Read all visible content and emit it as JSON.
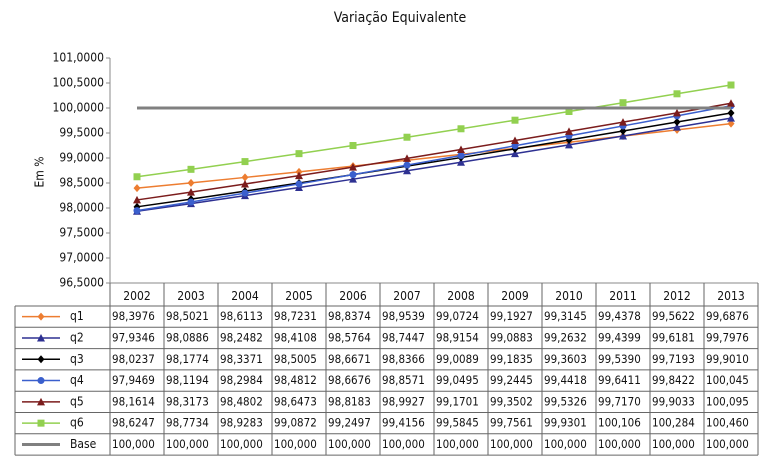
{
  "chart_data": {
    "type": "line",
    "title": "Variação Equivalente",
    "y_label": "Em %",
    "categories": [
      "2002",
      "2003",
      "2004",
      "2005",
      "2006",
      "2007",
      "2008",
      "2009",
      "2010",
      "2011",
      "2012",
      "2013"
    ],
    "ylim": [
      96.5,
      101
    ],
    "yticks": [
      {
        "value": 96.5,
        "label": "96,5000"
      },
      {
        "value": 97,
        "label": "97,0000"
      },
      {
        "value": 97.5,
        "label": "97,5000"
      },
      {
        "value": 98,
        "label": "98,0000"
      },
      {
        "value": 98.5,
        "label": "98,5000"
      },
      {
        "value": 99,
        "label": "99,0000"
      },
      {
        "value": 99.5,
        "label": "99,5000"
      },
      {
        "value": 100,
        "label": "100,0000"
      },
      {
        "value": 100.5,
        "label": "100,5000"
      },
      {
        "value": 101,
        "label": "101,0000"
      }
    ],
    "grid": false,
    "series": [
      {
        "name": "q1",
        "color": "#ed7d31",
        "marker": "diamond",
        "values": [
          98.3976,
          98.5021,
          98.6113,
          98.7231,
          98.8374,
          98.9539,
          99.0724,
          99.1927,
          99.3145,
          99.4378,
          99.5622,
          99.6876
        ],
        "value_labels": [
          "98,3976",
          "98,5021",
          "98,6113",
          "98,7231",
          "98,8374",
          "98,9539",
          "99,0724",
          "99,1927",
          "99,3145",
          "99,4378",
          "99,5622",
          "99,6876"
        ]
      },
      {
        "name": "q2",
        "color": "#2e3192",
        "marker": "triangle",
        "values": [
          97.9346,
          98.0886,
          98.2482,
          98.4108,
          98.5764,
          98.7447,
          98.9154,
          99.0883,
          99.2632,
          99.4399,
          99.6181,
          99.7976
        ],
        "value_labels": [
          "97,9346",
          "98,0886",
          "98,2482",
          "98,4108",
          "98,5764",
          "98,7447",
          "98,9154",
          "99,0883",
          "99,2632",
          "99,4399",
          "99,6181",
          "99,7976"
        ]
      },
      {
        "name": "q3",
        "color": "#000000",
        "marker": "diamond",
        "values": [
          98.0237,
          98.1774,
          98.3371,
          98.5005,
          98.6671,
          98.8366,
          99.0089,
          99.1835,
          99.3603,
          99.539,
          99.7193,
          99.901
        ],
        "value_labels": [
          "98,0237",
          "98,1774",
          "98,3371",
          "98,5005",
          "98,6671",
          "98,8366",
          "99,0089",
          "99,1835",
          "99,3603",
          "99,5390",
          "99,7193",
          "99,9010"
        ]
      },
      {
        "name": "q4",
        "color": "#3a5fcd",
        "marker": "circle",
        "values": [
          97.9469,
          98.1194,
          98.2984,
          98.4812,
          98.6676,
          98.8571,
          99.0495,
          99.2445,
          99.4418,
          99.6411,
          99.8422,
          100.045
        ],
        "value_labels": [
          "97,9469",
          "98,1194",
          "98,2984",
          "98,4812",
          "98,6676",
          "98,8571",
          "99,0495",
          "99,2445",
          "99,4418",
          "99,6411",
          "99,8422",
          "100,045"
        ]
      },
      {
        "name": "q5",
        "color": "#7b1c1c",
        "marker": "triangle",
        "values": [
          98.1614,
          98.3173,
          98.4802,
          98.6473,
          98.8183,
          98.9927,
          99.1701,
          99.3502,
          99.5326,
          99.717,
          99.9033,
          100.095
        ],
        "value_labels": [
          "98,1614",
          "98,3173",
          "98,4802",
          "98,6473",
          "98,8183",
          "98,9927",
          "99,1701",
          "99,3502",
          "99,5326",
          "99,7170",
          "99,9033",
          "100,095"
        ]
      },
      {
        "name": "q6",
        "color": "#92d050",
        "marker": "square",
        "values": [
          98.6247,
          98.7734,
          98.9283,
          99.0872,
          99.2497,
          99.4156,
          99.5845,
          99.7561,
          99.9301,
          100.106,
          100.284,
          100.46
        ],
        "value_labels": [
          "98,6247",
          "98,7734",
          "98,9283",
          "99,0872",
          "99,2497",
          "99,4156",
          "99,5845",
          "99,7561",
          "99,9301",
          "100,106",
          "100,284",
          "100,460"
        ]
      },
      {
        "name": "Base",
        "color": "#808080",
        "marker": "none",
        "values": [
          100,
          100,
          100,
          100,
          100,
          100,
          100,
          100,
          100,
          100,
          100,
          100
        ],
        "value_labels": [
          "100,000",
          "100,000",
          "100,000",
          "100,000",
          "100,000",
          "100,000",
          "100,000",
          "100,000",
          "100,000",
          "100,000",
          "100,000",
          "100,000"
        ]
      }
    ]
  }
}
